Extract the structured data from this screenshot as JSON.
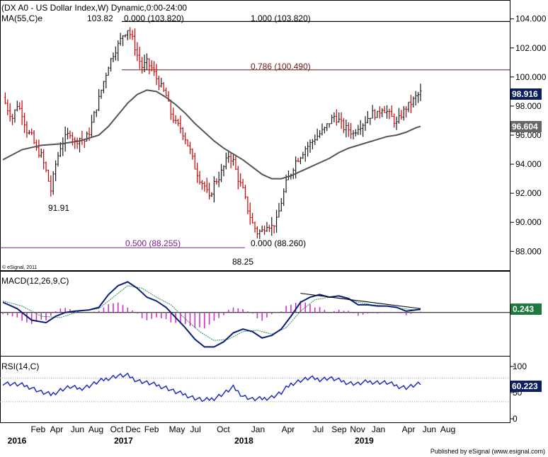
{
  "header": {
    "title": "(DX A0 - US Dollar Index,W) Dynamic,0:00-24:00",
    "study": "MA(55,C)e",
    "copyright": "© eSignal, 2011",
    "publisher": "Published by eSignal (www.esignal.com)"
  },
  "colors": {
    "bullish": "#1a1a1a",
    "bearish": "#cc0000",
    "ma": "#555555",
    "fib": "#6e1a1a",
    "fib_low": "#7a1f8a",
    "macd": "#0a1f7a",
    "signal": "#2e8b57",
    "histogram": "#cc33cc",
    "rsi": "#1e2fbf",
    "badge": "#0a1f5c",
    "badge_gray": "#666666",
    "badge_green": "#1e7a3c"
  },
  "chart_data": [
    {
      "type": "line",
      "title": "(DX A0 - US Dollar Index,W) Dynamic,0:00-24:00",
      "ylim": [
        86.7,
        105.3
      ],
      "yticks": [
        "104.000",
        "102.000",
        "100.000",
        "98.000",
        "96.000",
        "94.000",
        "92.000",
        "90.000",
        "88.000"
      ],
      "x_range": [
        "2015-11",
        "2019-09"
      ],
      "series": [
        {
          "name": "DX A0",
          "points": [
            [
              0,
              98.6
            ],
            [
              2,
              97.8
            ],
            [
              4,
              97.2
            ],
            [
              6,
              98.1
            ],
            [
              8,
              97.5
            ],
            [
              10,
              96.3
            ],
            [
              12,
              95.9
            ],
            [
              14,
              95.0
            ],
            [
              16,
              94.6
            ],
            [
              18,
              93.5
            ],
            [
              20,
              92.2
            ],
            [
              22,
              94.0
            ],
            [
              24,
              95.2
            ],
            [
              26,
              95.8
            ],
            [
              28,
              96.2
            ],
            [
              30,
              95.5
            ],
            [
              32,
              95.8
            ],
            [
              34,
              95.6
            ],
            [
              36,
              96.2
            ],
            [
              38,
              97.4
            ],
            [
              40,
              98.5
            ],
            [
              42,
              99.7
            ],
            [
              44,
              100.8
            ],
            [
              46,
              101.6
            ],
            [
              48,
              102.2
            ],
            [
              50,
              102.9
            ],
            [
              52,
              103.3
            ],
            [
              54,
              102.6
            ],
            [
              56,
              101.5
            ],
            [
              58,
              100.7
            ],
            [
              60,
              101.0
            ],
            [
              62,
              100.6
            ],
            [
              64,
              99.9
            ],
            [
              66,
              99.3
            ],
            [
              68,
              98.7
            ],
            [
              70,
              97.5
            ],
            [
              72,
              96.8
            ],
            [
              74,
              96.5
            ],
            [
              76,
              95.8
            ],
            [
              78,
              94.9
            ],
            [
              80,
              93.8
            ],
            [
              82,
              93.0
            ],
            [
              84,
              92.5
            ],
            [
              86,
              91.6
            ],
            [
              88,
              92.7
            ],
            [
              90,
              93.1
            ],
            [
              92,
              93.8
            ],
            [
              94,
              94.6
            ],
            [
              96,
              94.2
            ],
            [
              98,
              93.0
            ],
            [
              100,
              92.2
            ],
            [
              102,
              90.9
            ],
            [
              104,
              89.9
            ],
            [
              106,
              89.3
            ],
            [
              108,
              89.4
            ],
            [
              110,
              89.9
            ],
            [
              112,
              89.7
            ],
            [
              114,
              90.1
            ],
            [
              116,
              91.4
            ],
            [
              118,
              92.7
            ],
            [
              120,
              93.4
            ],
            [
              122,
              94.2
            ],
            [
              124,
              94.6
            ],
            [
              126,
              95.1
            ],
            [
              128,
              95.4
            ],
            [
              130,
              95.8
            ],
            [
              132,
              96.1
            ],
            [
              134,
              96.4
            ],
            [
              136,
              96.9
            ],
            [
              138,
              97.3
            ],
            [
              140,
              97.0
            ],
            [
              142,
              96.5
            ],
            [
              144,
              96.4
            ],
            [
              146,
              96.1
            ],
            [
              148,
              96.6
            ],
            [
              150,
              96.8
            ],
            [
              152,
              97.2
            ],
            [
              154,
              97.5
            ],
            [
              156,
              97.4
            ],
            [
              158,
              97.9
            ],
            [
              160,
              97.6
            ],
            [
              162,
              97.2
            ],
            [
              164,
              96.8
            ],
            [
              166,
              97.4
            ],
            [
              168,
              97.9
            ],
            [
              170,
              98.2
            ],
            [
              172,
              98.6
            ],
            [
              174,
              98.916
            ]
          ]
        },
        {
          "name": "MA(55,C)e",
          "points": [
            [
              0,
              94.3
            ],
            [
              8,
              95.0
            ],
            [
              16,
              95.3
            ],
            [
              24,
              95.4
            ],
            [
              32,
              95.6
            ],
            [
              40,
              96.0
            ],
            [
              44,
              96.6
            ],
            [
              48,
              97.4
            ],
            [
              52,
              98.2
            ],
            [
              56,
              98.8
            ],
            [
              60,
              99.1
            ],
            [
              64,
              99.0
            ],
            [
              68,
              98.6
            ],
            [
              72,
              98.1
            ],
            [
              76,
              97.5
            ],
            [
              80,
              96.8
            ],
            [
              84,
              96.2
            ],
            [
              88,
              95.6
            ],
            [
              92,
              95.1
            ],
            [
              96,
              94.7
            ],
            [
              100,
              94.3
            ],
            [
              104,
              93.8
            ],
            [
              108,
              93.3
            ],
            [
              112,
              93.0
            ],
            [
              116,
              93.0
            ],
            [
              120,
              93.2
            ],
            [
              124,
              93.5
            ],
            [
              128,
              93.8
            ],
            [
              132,
              94.1
            ],
            [
              136,
              94.4
            ],
            [
              140,
              94.8
            ],
            [
              144,
              95.1
            ],
            [
              148,
              95.3
            ],
            [
              152,
              95.5
            ],
            [
              156,
              95.7
            ],
            [
              160,
              95.9
            ],
            [
              164,
              96.0
            ],
            [
              168,
              96.2
            ],
            [
              172,
              96.5
            ],
            [
              174,
              96.604
            ]
          ]
        }
      ],
      "annotations": {
        "high_label": "103.82",
        "low_label_2016": "91.91",
        "low_label_2018": "88.25",
        "fib_levels": [
          {
            "label": "0.000 (103.820)",
            "value": 103.82
          },
          {
            "label": "1.000 (103.820)",
            "value": 103.82
          },
          {
            "label": "0.786 (100.490)",
            "value": 100.49
          },
          {
            "label": "0.500 (88.255)",
            "value": 88.255
          },
          {
            "label": "0.000 (88.260)",
            "value": 88.26
          }
        ],
        "last_price": "98.916",
        "ma_value": "96.604"
      }
    },
    {
      "type": "line",
      "title": "MACD(12,26,9,C)",
      "ylim": [
        -3.4,
        3.2
      ],
      "last_value": "0.243",
      "series": [
        {
          "name": "MACD",
          "points": [
            [
              0,
              0.8
            ],
            [
              6,
              0.3
            ],
            [
              12,
              -0.6
            ],
            [
              18,
              -0.8
            ],
            [
              22,
              -0.3
            ],
            [
              26,
              0.0
            ],
            [
              30,
              0.1
            ],
            [
              36,
              0.2
            ],
            [
              40,
              0.4
            ],
            [
              44,
              1.4
            ],
            [
              48,
              2.1
            ],
            [
              52,
              2.4
            ],
            [
              56,
              1.9
            ],
            [
              60,
              1.2
            ],
            [
              64,
              0.9
            ],
            [
              68,
              0.4
            ],
            [
              72,
              -0.4
            ],
            [
              76,
              -1.2
            ],
            [
              80,
              -2.1
            ],
            [
              84,
              -2.7
            ],
            [
              88,
              -2.7
            ],
            [
              92,
              -2.3
            ],
            [
              96,
              -1.6
            ],
            [
              100,
              -1.3
            ],
            [
              104,
              -1.5
            ],
            [
              108,
              -2.0
            ],
            [
              112,
              -1.8
            ],
            [
              116,
              -1.3
            ],
            [
              120,
              -0.3
            ],
            [
              124,
              0.8
            ],
            [
              128,
              1.2
            ],
            [
              132,
              1.4
            ],
            [
              136,
              1.2
            ],
            [
              140,
              1.3
            ],
            [
              144,
              1.1
            ],
            [
              148,
              0.6
            ],
            [
              152,
              0.6
            ],
            [
              156,
              0.5
            ],
            [
              160,
              0.5
            ],
            [
              164,
              0.4
            ],
            [
              168,
              0.1
            ],
            [
              172,
              0.2
            ],
            [
              174,
              0.25
            ]
          ]
        },
        {
          "name": "Signal",
          "points": [
            [
              0,
              0.9
            ],
            [
              8,
              0.5
            ],
            [
              16,
              -0.3
            ],
            [
              24,
              -0.4
            ],
            [
              32,
              0.1
            ],
            [
              40,
              0.3
            ],
            [
              46,
              1.2
            ],
            [
              52,
              2.1
            ],
            [
              58,
              1.9
            ],
            [
              64,
              1.2
            ],
            [
              70,
              0.6
            ],
            [
              76,
              -0.5
            ],
            [
              82,
              -1.5
            ],
            [
              88,
              -2.2
            ],
            [
              94,
              -2.1
            ],
            [
              100,
              -1.5
            ],
            [
              106,
              -1.4
            ],
            [
              112,
              -1.7
            ],
            [
              118,
              -1.2
            ],
            [
              124,
              0.1
            ],
            [
              130,
              1.0
            ],
            [
              136,
              1.2
            ],
            [
              142,
              1.1
            ],
            [
              148,
              0.8
            ],
            [
              154,
              0.6
            ],
            [
              160,
              0.5
            ],
            [
              166,
              0.3
            ],
            [
              172,
              0.2
            ],
            [
              174,
              0.2
            ]
          ]
        }
      ]
    },
    {
      "type": "line",
      "title": "RSI(14,C)",
      "ylim": [
        0,
        100
      ],
      "yticks": [
        "100",
        "50",
        "0"
      ],
      "last_value": "60.223",
      "series": [
        {
          "name": "RSI",
          "points": [
            [
              0,
              62
            ],
            [
              4,
              60
            ],
            [
              8,
              58
            ],
            [
              12,
              54
            ],
            [
              16,
              46
            ],
            [
              20,
              42
            ],
            [
              24,
              50
            ],
            [
              28,
              55
            ],
            [
              32,
              52
            ],
            [
              36,
              57
            ],
            [
              40,
              64
            ],
            [
              44,
              70
            ],
            [
              48,
              74
            ],
            [
              52,
              74
            ],
            [
              56,
              66
            ],
            [
              60,
              62
            ],
            [
              64,
              58
            ],
            [
              68,
              54
            ],
            [
              72,
              46
            ],
            [
              76,
              42
            ],
            [
              80,
              36
            ],
            [
              84,
              32
            ],
            [
              88,
              36
            ],
            [
              92,
              44
            ],
            [
              96,
              54
            ],
            [
              100,
              40
            ],
            [
              104,
              34
            ],
            [
              108,
              35
            ],
            [
              112,
              38
            ],
            [
              116,
              45
            ],
            [
              120,
              60
            ],
            [
              124,
              66
            ],
            [
              128,
              70
            ],
            [
              132,
              68
            ],
            [
              136,
              70
            ],
            [
              140,
              66
            ],
            [
              144,
              62
            ],
            [
              148,
              60
            ],
            [
              152,
              64
            ],
            [
              156,
              63
            ],
            [
              160,
              62
            ],
            [
              164,
              57
            ],
            [
              168,
              54
            ],
            [
              172,
              58
            ],
            [
              174,
              60.223
            ]
          ]
        }
      ]
    }
  ],
  "x_axis": {
    "months": [
      "Feb",
      "Apr",
      "Jun",
      "Aug",
      "Oct",
      "Dec",
      "Feb",
      "May",
      "Jul",
      "Oct",
      "Jan",
      "Apr",
      "Jul",
      "Sep",
      "Nov",
      "Jan",
      "Apr",
      "Jun",
      "Aug"
    ],
    "month_x": [
      3,
      11,
      20,
      28,
      37,
      44,
      52,
      63,
      71,
      83,
      98,
      111,
      124,
      133,
      141,
      150,
      163,
      172,
      180
    ],
    "years": [
      "2016",
      "2017",
      "2018",
      "2019"
    ],
    "year_x": [
      0,
      46,
      98,
      150
    ]
  }
}
